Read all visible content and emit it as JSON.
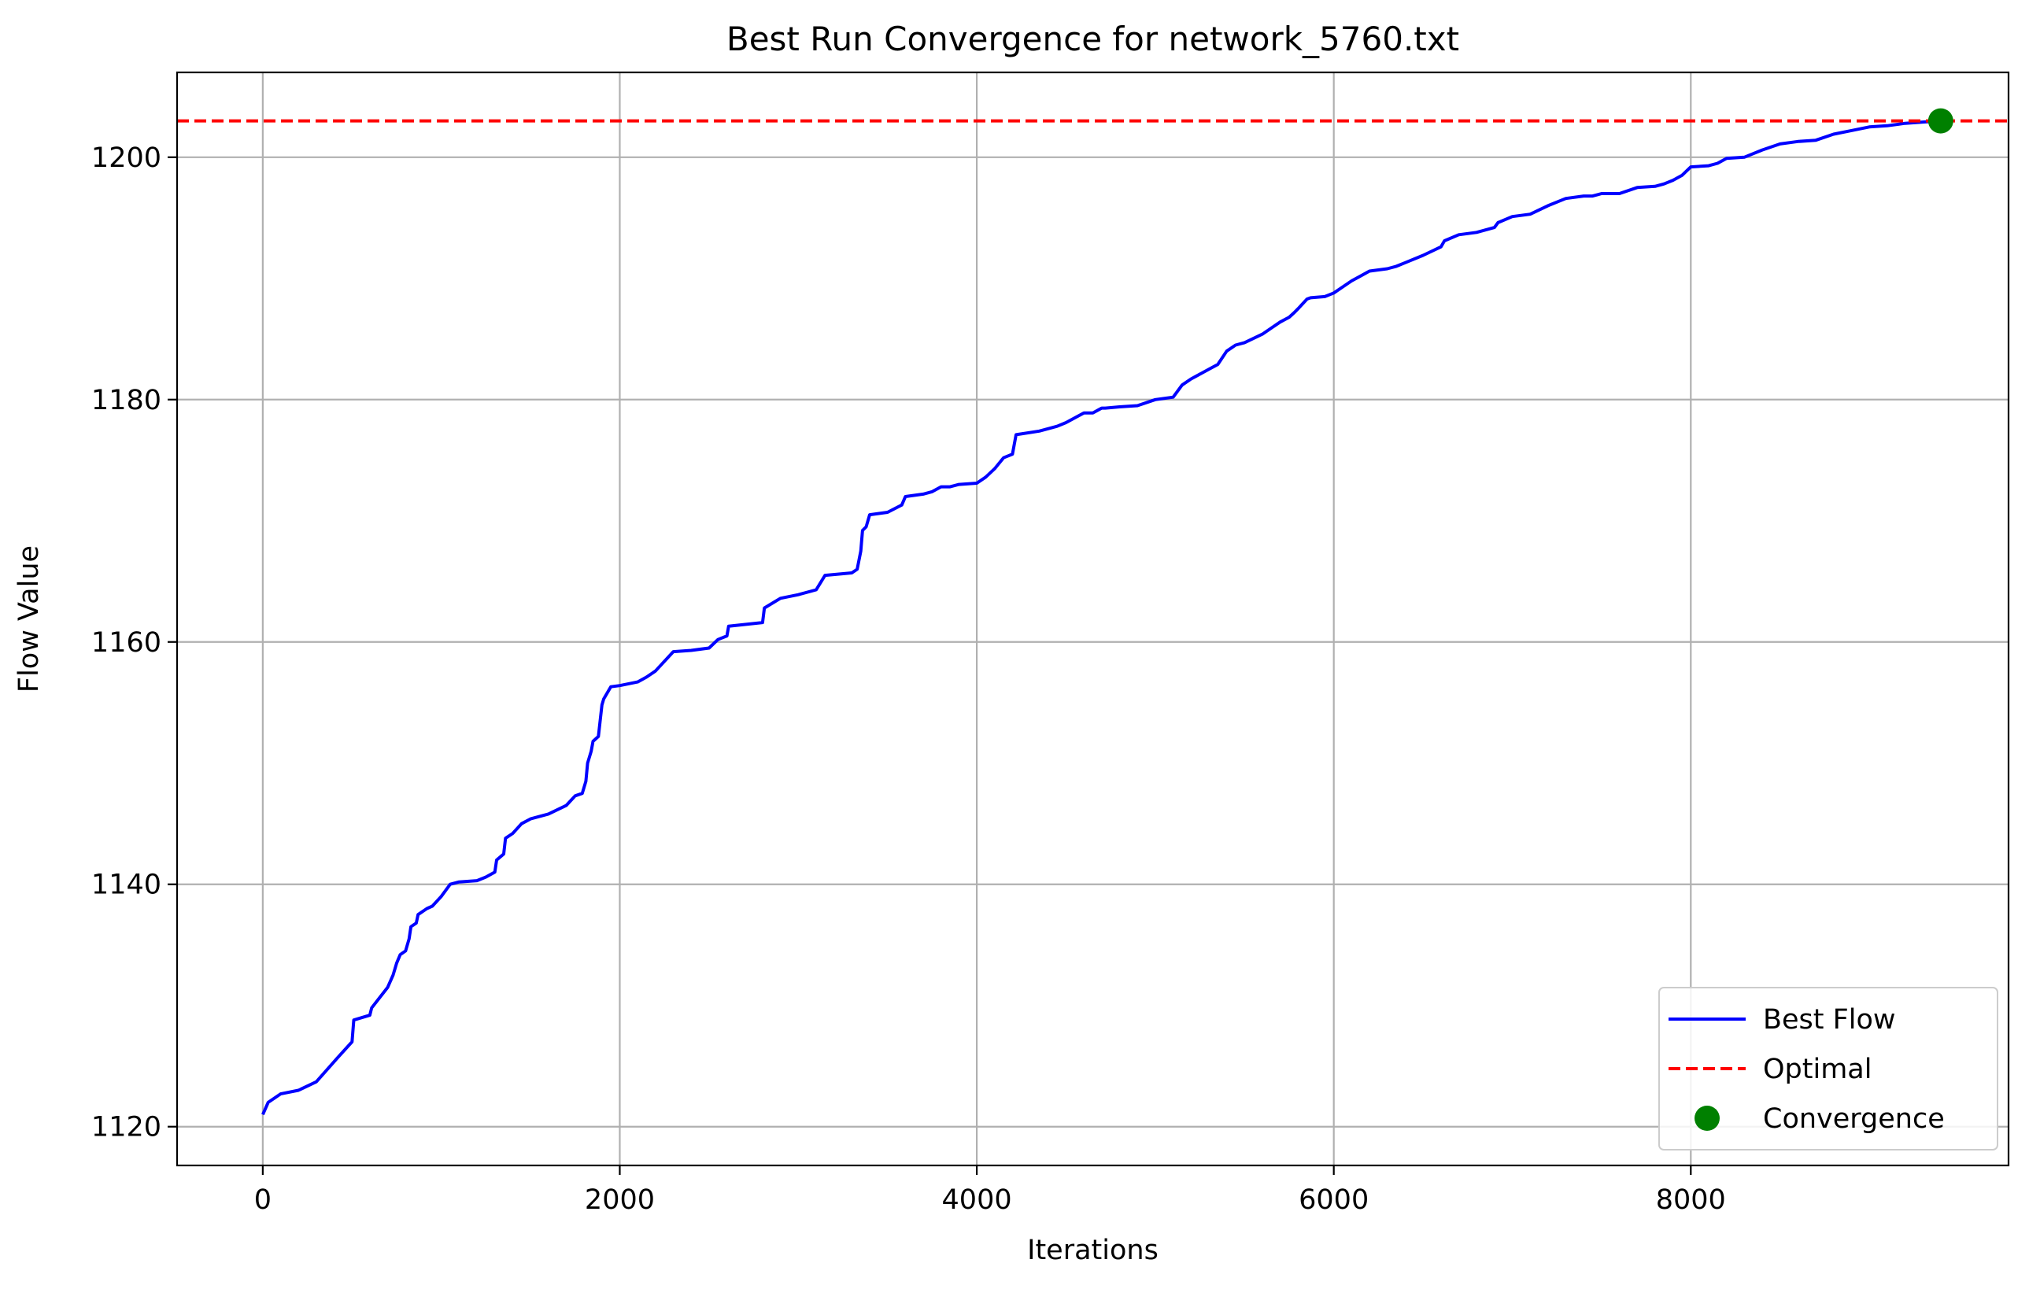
{
  "chart_data": {
    "type": "line",
    "title": "Best Run Convergence for network_5760.txt",
    "xlabel": "Iterations",
    "ylabel": "Flow Value",
    "xlim": [
      -480,
      9780
    ],
    "ylim": [
      1116.8,
      1207.0
    ],
    "xticks": [
      0,
      2000,
      4000,
      6000,
      8000
    ],
    "yticks": [
      1120,
      1140,
      1160,
      1180,
      1200
    ],
    "grid": true,
    "legend_position": "lower-right",
    "colors": {
      "best_flow": "#0000ff",
      "optimal": "#ff0000",
      "convergence": "#008000"
    },
    "series": [
      {
        "name": "Best Flow",
        "style": "solid",
        "x": [
          0,
          30,
          100,
          200,
          300,
          420,
          500,
          510,
          600,
          610,
          700,
          730,
          750,
          770,
          800,
          820,
          830,
          860,
          870,
          920,
          950,
          1000,
          1050,
          1100,
          1200,
          1250,
          1300,
          1310,
          1350,
          1360,
          1400,
          1450,
          1500,
          1600,
          1700,
          1750,
          1790,
          1810,
          1820,
          1840,
          1850,
          1880,
          1900,
          1910,
          1950,
          2000,
          2100,
          2150,
          2200,
          2300,
          2400,
          2500,
          2550,
          2600,
          2610,
          2800,
          2810,
          2900,
          3000,
          3100,
          3150,
          3300,
          3330,
          3350,
          3360,
          3380,
          3400,
          3500,
          3580,
          3600,
          3700,
          3750,
          3800,
          3850,
          3900,
          4000,
          4050,
          4100,
          4150,
          4200,
          4220,
          4350,
          4450,
          4500,
          4550,
          4600,
          4650,
          4700,
          4720,
          4800,
          4900,
          5000,
          5100,
          5150,
          5200,
          5300,
          5350,
          5400,
          5450,
          5500,
          5600,
          5650,
          5700,
          5750,
          5780,
          5800,
          5850,
          5870,
          5950,
          6000,
          6050,
          6100,
          6150,
          6200,
          6300,
          6350,
          6400,
          6500,
          6600,
          6620,
          6700,
          6800,
          6900,
          6920,
          7000,
          7100,
          7200,
          7300,
          7400,
          7450,
          7500,
          7600,
          7700,
          7800,
          7850,
          7900,
          7950,
          8000,
          8100,
          8150,
          8200,
          8300,
          8400,
          8500,
          8600,
          8700,
          8800,
          8900,
          9000,
          9100,
          9200,
          9300,
          9400
        ],
        "y": [
          1121,
          1122,
          1122.7,
          1123,
          1123.7,
          1125.7,
          1127,
          1128.8,
          1129.2,
          1129.8,
          1131.5,
          1132.5,
          1133.5,
          1134.2,
          1134.5,
          1135.5,
          1136.5,
          1136.8,
          1137.5,
          1138,
          1138.2,
          1139,
          1140,
          1140.2,
          1140.3,
          1140.6,
          1141,
          1142,
          1142.5,
          1143.8,
          1144.2,
          1145,
          1145.4,
          1145.8,
          1146.5,
          1147.3,
          1147.5,
          1148.5,
          1150,
          1151,
          1151.8,
          1152.2,
          1154.8,
          1155.3,
          1156.3,
          1156.4,
          1156.7,
          1157.1,
          1157.6,
          1159.2,
          1159.3,
          1159.5,
          1160.2,
          1160.5,
          1161.3,
          1161.6,
          1162.8,
          1163.6,
          1163.9,
          1164.3,
          1165.5,
          1165.7,
          1166,
          1167.5,
          1169.2,
          1169.5,
          1170.5,
          1170.7,
          1171.3,
          1172,
          1172.2,
          1172.4,
          1172.8,
          1172.8,
          1173,
          1173.1,
          1173.6,
          1174.3,
          1175.2,
          1175.5,
          1177.1,
          1177.4,
          1177.8,
          1178.1,
          1178.5,
          1178.9,
          1178.9,
          1179.3,
          1179.3,
          1179.4,
          1179.5,
          1180,
          1180.2,
          1181.2,
          1181.7,
          1182.5,
          1182.9,
          1184,
          1184.5,
          1184.7,
          1185.4,
          1185.9,
          1186.4,
          1186.8,
          1187.2,
          1187.5,
          1188.3,
          1188.4,
          1188.5,
          1188.8,
          1189.3,
          1189.8,
          1190.2,
          1190.6,
          1190.8,
          1191,
          1191.3,
          1191.9,
          1192.6,
          1193.1,
          1193.6,
          1193.8,
          1194.2,
          1194.6,
          1195.1,
          1195.3,
          1196,
          1196.6,
          1196.8,
          1196.8,
          1197,
          1197,
          1197.5,
          1197.6,
          1197.8,
          1198.1,
          1198.5,
          1199.2,
          1199.3,
          1199.5,
          1199.9,
          1200,
          1200.6,
          1201.1,
          1201.3,
          1201.4,
          1201.9,
          1202.2,
          1202.5,
          1202.6,
          1202.8,
          1202.9,
          1203
        ]
      },
      {
        "name": "Optimal",
        "style": "dashed",
        "y_const": 1203
      },
      {
        "name": "Convergence",
        "style": "marker",
        "x": [
          9400
        ],
        "y": [
          1203
        ]
      }
    ]
  }
}
